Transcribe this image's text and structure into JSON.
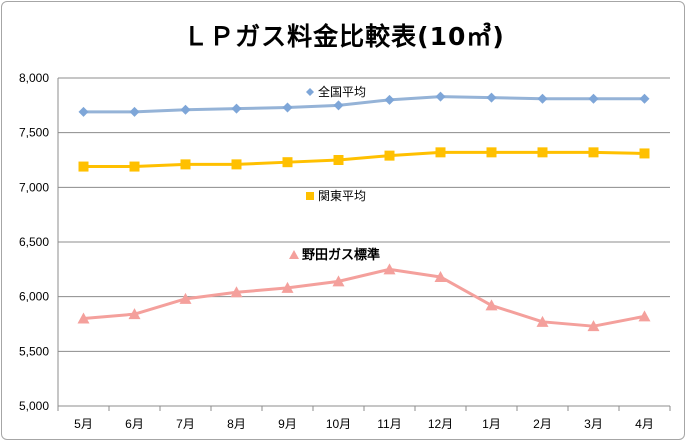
{
  "chart_data": {
    "type": "line",
    "title": "ＬＰガス料金比較表(10㎥)",
    "xlabel": "",
    "ylabel": "",
    "categories": [
      "5月",
      "6月",
      "7月",
      "8月",
      "9月",
      "10月",
      "11月",
      "12月",
      "1月",
      "2月",
      "3月",
      "4月"
    ],
    "ylim": [
      5000,
      8000
    ],
    "ytick_step": 500,
    "ytick_labels": [
      "5,000",
      "5,500",
      "6,000",
      "6,500",
      "7,000",
      "7,500",
      "8,000"
    ],
    "grid": true,
    "legend_position": "inline-labels",
    "series": [
      {
        "name": "全国平均",
        "marker": "diamond",
        "color": "#95b3d7",
        "label_bold": false,
        "values": [
          7690,
          7690,
          7710,
          7720,
          7730,
          7750,
          7800,
          7830,
          7820,
          7810,
          7810,
          7810
        ]
      },
      {
        "name": "関東平均",
        "marker": "square",
        "color": "#ffc000",
        "label_bold": false,
        "values": [
          7190,
          7190,
          7210,
          7210,
          7230,
          7250,
          7290,
          7320,
          7320,
          7320,
          7320,
          7310
        ]
      },
      {
        "name": "野田ガス標準",
        "marker": "triangle",
        "color": "#f4a09c",
        "label_bold": true,
        "values": [
          5800,
          5840,
          5980,
          6040,
          6080,
          6140,
          6250,
          6180,
          5920,
          5770,
          5730,
          5820
        ]
      }
    ]
  }
}
